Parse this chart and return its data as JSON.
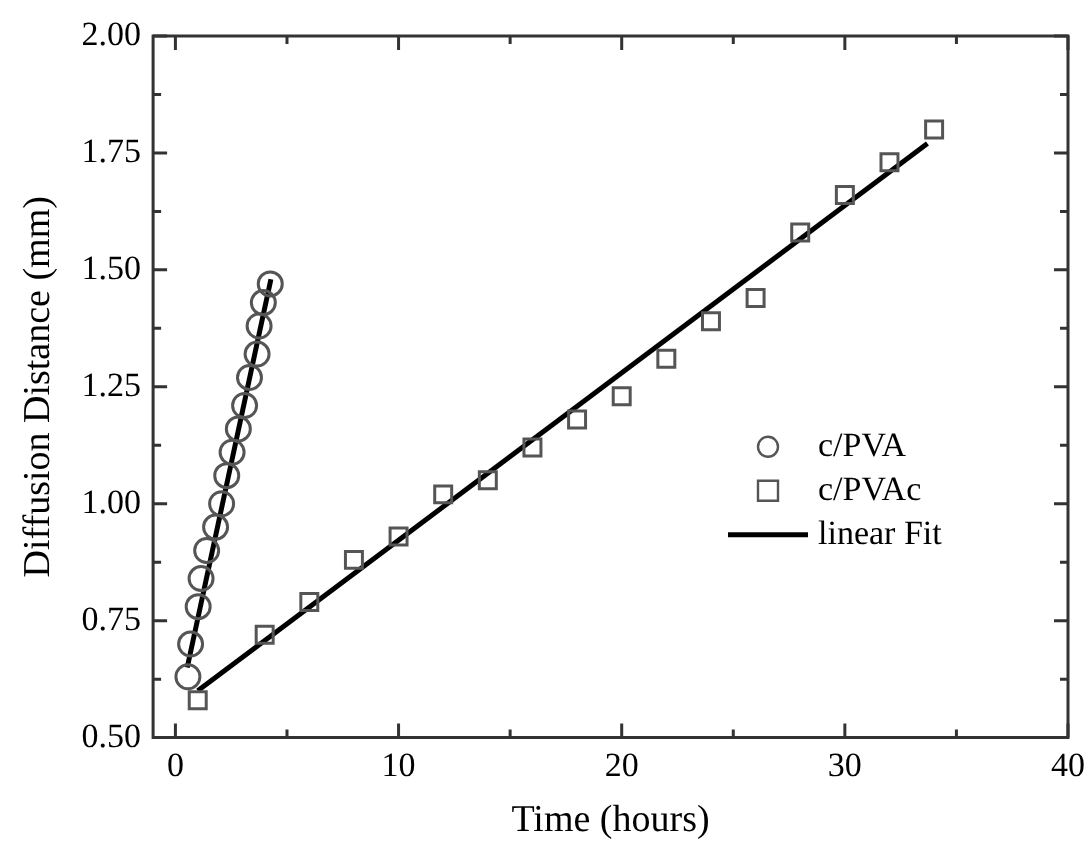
{
  "chart_data": {
    "type": "scatter",
    "xlabel": "Time (hours)",
    "ylabel": "Diffusion Distance (mm)",
    "xlim": [
      -1,
      40
    ],
    "ylim": [
      0.5,
      2.0
    ],
    "xticks": [
      0,
      {
        "value": 5,
        "label": null
      },
      10,
      {
        "value": 15,
        "label": null
      },
      20,
      {
        "value": 25,
        "label": null
      },
      30,
      {
        "value": 35,
        "label": null
      },
      40
    ],
    "yticks": [
      {
        "value": 0.5,
        "label": "0.50"
      },
      {
        "value": 0.625,
        "label": null
      },
      {
        "value": 0.75,
        "label": "0.75"
      },
      {
        "value": 0.875,
        "label": null
      },
      {
        "value": 1.0,
        "label": "1.00"
      },
      {
        "value": 1.125,
        "label": null
      },
      {
        "value": 1.25,
        "label": "1.25"
      },
      {
        "value": 1.375,
        "label": null
      },
      {
        "value": 1.5,
        "label": "1.50"
      },
      {
        "value": 1.625,
        "label": null
      },
      {
        "value": 1.75,
        "label": "1.75"
      },
      {
        "value": 1.875,
        "label": null
      },
      {
        "value": 2.0,
        "label": "2.00"
      }
    ],
    "grid": false,
    "legend": "right",
    "series": [
      {
        "name": "c/PVA",
        "marker": "circle",
        "color": "#555555",
        "x": [
          0.56,
          0.68,
          1.02,
          1.15,
          1.4,
          1.8,
          2.07,
          2.3,
          2.54,
          2.82,
          3.1,
          3.32,
          3.66,
          3.75,
          3.94,
          4.25
        ],
        "values": [
          0.63,
          0.7,
          0.78,
          0.84,
          0.9,
          0.95,
          1.0,
          1.06,
          1.11,
          1.16,
          1.21,
          1.27,
          1.32,
          1.38,
          1.43,
          1.47
        ]
      },
      {
        "name": "c/PVAc",
        "marker": "square",
        "color": "#555555",
        "x": [
          1,
          4,
          6,
          8,
          10,
          12,
          14,
          16,
          18,
          20,
          22,
          24,
          26,
          28,
          30,
          32,
          34
        ],
        "values": [
          0.58,
          0.72,
          0.79,
          0.88,
          0.93,
          1.02,
          1.05,
          1.12,
          1.18,
          1.23,
          1.31,
          1.39,
          1.44,
          1.58,
          1.66,
          1.73,
          1.8
        ]
      },
      {
        "name": "linear Fit",
        "type": "line",
        "marker": "none",
        "line_style": "solid",
        "color": "#000000",
        "x": [
          0.53,
          4.28
        ],
        "values": [
          0.65,
          1.48
        ]
      },
      {
        "type": "line",
        "marker": "none",
        "line_style": "solid",
        "color": "#000000",
        "x": [
          1,
          33.7
        ],
        "values": [
          0.6,
          1.77
        ]
      }
    ]
  }
}
